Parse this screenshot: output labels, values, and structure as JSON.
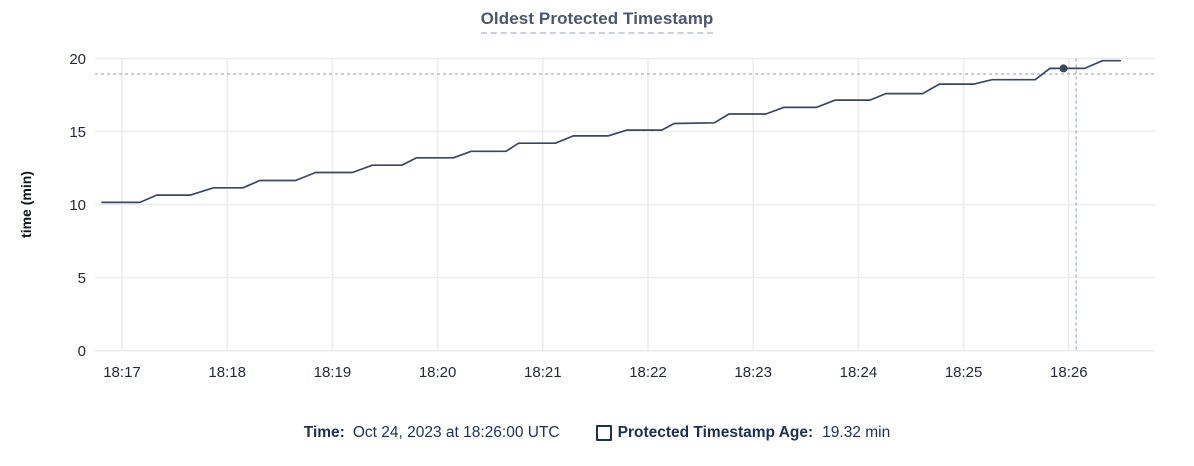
{
  "colors": {
    "title": "#475872",
    "line": "#3a4760",
    "grid": "#ececec",
    "crosshair": "#a3b4bf",
    "axis_text": "#242a35",
    "legend_text": "#1c3152"
  },
  "legend": {
    "time_label": "Time:",
    "time_value": "Oct 24, 2023 at 18:26:00 UTC",
    "series_label": "Protected Timestamp Age:",
    "series_value": "19.32 min"
  },
  "chart_data": {
    "type": "line",
    "title": "Oldest Protected Timestamp",
    "xlabel": "",
    "ylabel": "time (min)",
    "ylim": [
      0,
      20
    ],
    "y_ticks": [
      0,
      5,
      10,
      15,
      20
    ],
    "x_tick_labels": [
      "18:17",
      "18:18",
      "18:19",
      "18:20",
      "18:21",
      "18:22",
      "18:23",
      "18:24",
      "18:25",
      "18:26"
    ],
    "x_unit": "minutes after 18:17 UTC",
    "xlim": [
      -0.26,
      9.82
    ],
    "grid": true,
    "legend_position": "bottom",
    "series": [
      {
        "name": "Protected Timestamp Age",
        "unit": "min",
        "points": [
          [
            -0.19,
            10.15
          ],
          [
            0.17,
            10.15
          ],
          [
            0.33,
            10.65
          ],
          [
            0.65,
            10.65
          ],
          [
            0.87,
            11.15
          ],
          [
            1.15,
            11.15
          ],
          [
            1.31,
            11.65
          ],
          [
            1.65,
            11.65
          ],
          [
            1.84,
            12.2
          ],
          [
            2.19,
            12.2
          ],
          [
            2.38,
            12.7
          ],
          [
            2.66,
            12.7
          ],
          [
            2.8,
            13.2
          ],
          [
            3.15,
            13.2
          ],
          [
            3.32,
            13.65
          ],
          [
            3.65,
            13.65
          ],
          [
            3.77,
            14.2
          ],
          [
            4.12,
            14.2
          ],
          [
            4.29,
            14.7
          ],
          [
            4.62,
            14.7
          ],
          [
            4.8,
            15.1
          ],
          [
            5.13,
            15.1
          ],
          [
            5.25,
            15.55
          ],
          [
            5.63,
            15.6
          ],
          [
            5.77,
            16.2
          ],
          [
            6.12,
            16.2
          ],
          [
            6.29,
            16.65
          ],
          [
            6.6,
            16.65
          ],
          [
            6.78,
            17.15
          ],
          [
            7.11,
            17.15
          ],
          [
            7.26,
            17.6
          ],
          [
            7.61,
            17.6
          ],
          [
            7.77,
            18.25
          ],
          [
            8.1,
            18.25
          ],
          [
            8.27,
            18.55
          ],
          [
            8.68,
            18.55
          ],
          [
            8.82,
            19.32
          ],
          [
            9.15,
            19.32
          ],
          [
            9.32,
            19.85
          ],
          [
            9.49,
            19.85
          ]
        ]
      }
    ],
    "hover": {
      "hovered_time": "18:26:00",
      "snapped_point": [
        8.95,
        19.32
      ],
      "snapped_value_label": "19.32 min",
      "crosshair_x": 9.07,
      "crosshair_y": 18.94
    }
  }
}
